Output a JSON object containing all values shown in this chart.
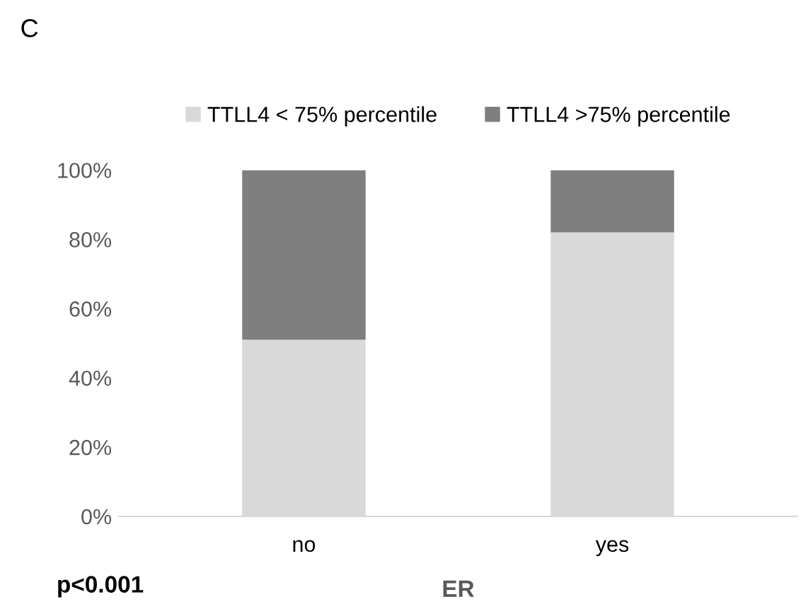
{
  "chart_data": {
    "type": "bar",
    "title": "C",
    "xlabel": "ER",
    "categories": [
      "no",
      "yes"
    ],
    "series": [
      {
        "name": "TTLL4 < 75% percentile",
        "color": "#d9d9d9",
        "values": [
          51,
          82
        ]
      },
      {
        "name": "TTLL4 >75% percentile",
        "color": "#7f7f7f",
        "values": [
          49,
          18
        ]
      }
    ],
    "stacked": true,
    "ylim": [
      0,
      100
    ],
    "yticks": [
      {
        "value": 0,
        "label": "0%"
      },
      {
        "value": 20,
        "label": "20%"
      },
      {
        "value": 40,
        "label": "40%"
      },
      {
        "value": 60,
        "label": "60%"
      },
      {
        "value": 80,
        "label": "80%"
      },
      {
        "value": 100,
        "label": "100%"
      }
    ],
    "grid": false,
    "legend": "top",
    "annotations": [
      "p<0.001"
    ]
  }
}
